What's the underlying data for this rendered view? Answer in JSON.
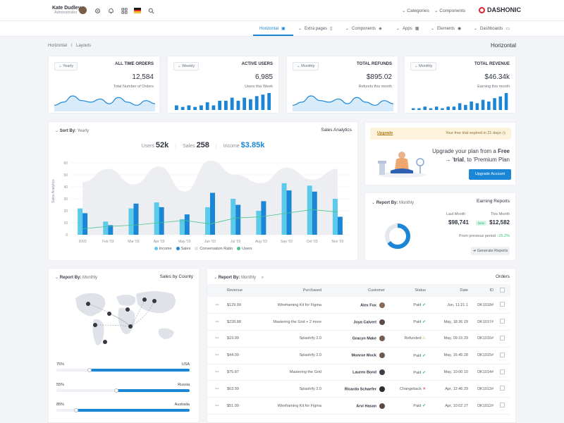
{
  "header": {
    "user_name": "Kate Dudley",
    "user_role": "Administrator",
    "icons": [
      "gear-icon",
      "bell-icon",
      "grid-icon",
      "flag-de",
      "search-icon"
    ],
    "menu": [
      "Categories",
      "Components"
    ],
    "logo": "DASHONIC"
  },
  "nav": {
    "items": [
      "Horizontal",
      "Extra pages",
      "Components",
      "Apps",
      "Elements",
      "Dashboards"
    ]
  },
  "breadcrumb": {
    "home": "Horizontal",
    "sep": "/",
    "current": "Layouts"
  },
  "page_title": "Horizontal",
  "stats": [
    {
      "filter": "Yearly",
      "title": "ALL TIME ORDERS",
      "value": "12,584",
      "sub": "Total Number of Orders",
      "spark": "line",
      "points": [
        3,
        5,
        9,
        6,
        5,
        7,
        4,
        8,
        5,
        3,
        6,
        4
      ]
    },
    {
      "filter": "Weekly",
      "title": "ACTIVE USERS",
      "value": "6,985",
      "sub": "Users this Week",
      "spark": "bar",
      "points": [
        3,
        2,
        3,
        2,
        3,
        5,
        3,
        6,
        6,
        8,
        6,
        8,
        7,
        9,
        10,
        11
      ]
    },
    {
      "filter": "Monthly",
      "title": "TOTAL REFUNDS",
      "value": "$895.02",
      "sub": "Refunds this month",
      "spark": "line",
      "points": [
        3,
        5,
        9,
        6,
        5,
        7,
        4,
        8,
        5,
        3,
        6,
        4
      ]
    },
    {
      "filter": "Monthly",
      "title": "TOTAL REVENUE",
      "value": "$46.34k",
      "sub": "Earning this month",
      "spark": "bar",
      "points": [
        1,
        1,
        2,
        1,
        2,
        1,
        2,
        2,
        4,
        3,
        5,
        4,
        6,
        5,
        7,
        8,
        10
      ]
    }
  ],
  "sales": {
    "sort_label": "Sort By:",
    "sort_value": "Yearly",
    "title": "Sales Analytics",
    "users_label": "Users",
    "users_value": "52k",
    "sales_label": "Sales",
    "sales_value": "258",
    "income_label": "Income",
    "income_value": "$3.85k",
    "ylabel": "Sales Analytics",
    "legend": [
      "Income",
      "Sales",
      "Conversation Ratio",
      "Users"
    ]
  },
  "chart_data": {
    "type": "bar",
    "title": "Sales Analytics",
    "ylabel": "Sales Analytics",
    "ylim": [
      0,
      60
    ],
    "yticks": [
      0,
      10,
      20,
      30,
      40,
      50,
      60
    ],
    "categories": [
      "2003",
      "Feb '03",
      "Mar '03",
      "Apr '03",
      "May '03",
      "Jun '03",
      "Jul '03",
      "Aug '03",
      "Sep '03",
      "Oct '03",
      "Nov '03"
    ],
    "series": [
      {
        "name": "Income",
        "type": "bar",
        "color": "#5ccbe9",
        "values": [
          22,
          11,
          22,
          27,
          13,
          23,
          30,
          20,
          43,
          41,
          30
        ]
      },
      {
        "name": "Sales",
        "type": "bar",
        "color": "#1b86d6",
        "values": [
          18,
          8,
          26,
          23,
          17,
          35,
          25,
          28,
          37,
          36,
          15
        ]
      },
      {
        "name": "Conversation Ratio",
        "type": "area",
        "color": "#eceef2",
        "values": [
          44,
          55,
          42,
          57,
          36,
          62,
          50,
          43,
          56,
          46,
          55
        ]
      },
      {
        "name": "Users",
        "type": "line",
        "color": "#48c48b",
        "values": [
          5,
          7,
          8,
          10,
          12,
          9,
          14,
          15,
          18,
          21,
          19
        ]
      }
    ]
  },
  "promo": {
    "link": "Upgrade",
    "notice_prefix": "Your free trial expired in",
    "days": "21",
    "days_unit": "days",
    "line1_a": "Upgrade your plan from a",
    "line1_b": "Free",
    "line2_a": "trial",
    "line2_b": ", to 'Premium Plan",
    "button": "Upgrade Account"
  },
  "earning": {
    "report_label": "Report By:",
    "report_value": "Monthly",
    "title": "Earning Reports",
    "last_label": "Last Month",
    "last_value": "$98,741",
    "this_label": "This Month",
    "this_value": "$12,582",
    "badge": "New",
    "prev_label": "From previous period",
    "prev_value": "25.2%",
    "button": "Generate Reports",
    "donut_percent": 65
  },
  "county": {
    "report_label": "Report By:",
    "report_value": "Monthly",
    "title": "Sales by County",
    "rows": [
      {
        "percent": "75%",
        "country": "USA",
        "value": 0.75
      },
      {
        "percent": "55%",
        "country": "Russia",
        "value": 0.55
      },
      {
        "percent": "85%",
        "country": "Australia",
        "value": 0.85
      }
    ]
  },
  "orders": {
    "report_label": "Report By:",
    "report_value": "Monthly",
    "title": "Orders",
    "columns": [
      "Revenue",
      "Purchased",
      "Customer",
      "Status",
      "Date",
      "ID"
    ],
    "rows": [
      {
        "revenue": "$129.99",
        "purchased": "Wireframing Kit for Figma",
        "customer": "Alex Fox",
        "status": "Paid",
        "status_type": "paid",
        "date": "Jun, 11:21 1",
        "id": "DK1018#",
        "avatar": "#8a6a55"
      },
      {
        "revenue": "$228.88",
        "purchased": "Mastering the Grid + 2 more",
        "customer": "Joya Calvert",
        "status": "Paid",
        "status_type": "paid",
        "date": "May, 18:36 29",
        "id": "DK1017#",
        "avatar": "#5b4d46"
      },
      {
        "revenue": "$19.99",
        "purchased": "Spiashify 2.0",
        "customer": "Gracyn Make",
        "status": "Refunded",
        "status_type": "refund",
        "date": "May, 09:15 29",
        "id": "DK1016#",
        "avatar": "#7b5a52"
      },
      {
        "revenue": "$44.00",
        "purchased": "Spiashify 2.0",
        "customer": "Monroe Mock",
        "status": "Paid",
        "status_type": "paid",
        "date": "May, 15:45 28",
        "id": "DK1015#",
        "avatar": "#6a5a50"
      },
      {
        "revenue": "$75.87",
        "purchased": "Mastering the Grid",
        "customer": "Lauren Bond",
        "status": "Paid",
        "status_type": "paid",
        "date": "May, 10:00 10",
        "id": "DK1014#",
        "avatar": "#3e3e48"
      },
      {
        "revenue": "$63.99",
        "purchased": "Spiashify 2.0",
        "customer": "Ricardo Schaefer",
        "status": "Changeback",
        "status_type": "change",
        "date": "Apr, 12:46 29",
        "id": "DK1013#",
        "avatar": "#2d2d32"
      },
      {
        "revenue": "$51.00",
        "purchased": "Wireframing Kit for Figma",
        "customer": "Arvi Hasan",
        "status": "Paid",
        "status_type": "paid",
        "date": "Apr, 10:02 27",
        "id": "DK1012#",
        "avatar": "#5a4a44"
      }
    ]
  }
}
